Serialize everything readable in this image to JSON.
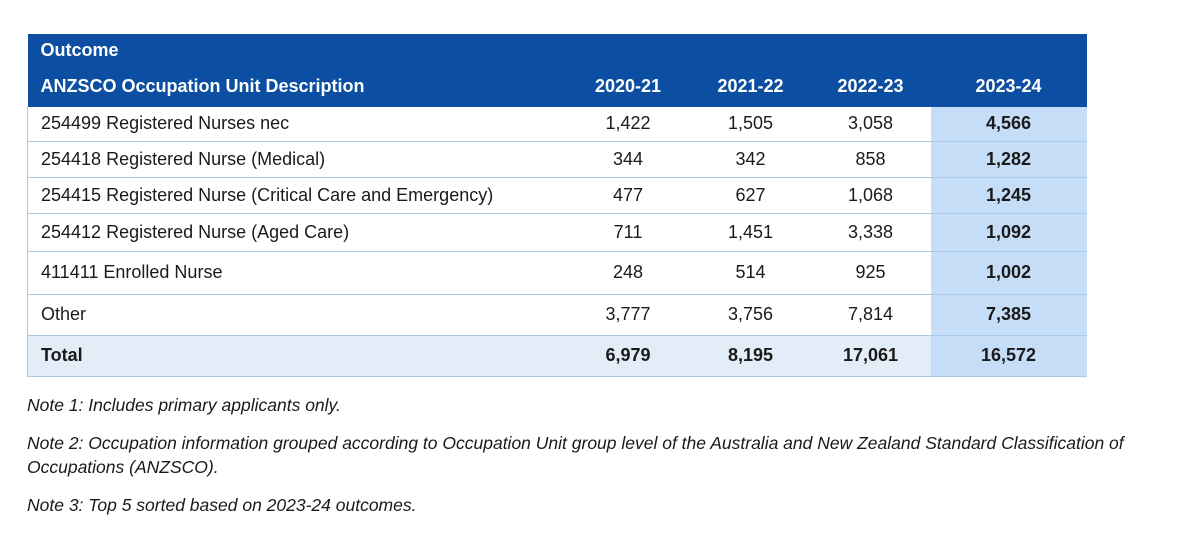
{
  "table": {
    "group_header": "Outcome",
    "columns": [
      "ANZSCO Occupation Unit Description",
      "2020-21",
      "2021-22",
      "2022-23",
      "2023-24"
    ],
    "rows": [
      [
        "254499 Registered Nurses nec",
        "1,422",
        "1,505",
        "3,058",
        "4,566"
      ],
      [
        "254418 Registered Nurse (Medical)",
        "344",
        "342",
        "858",
        "1,282"
      ],
      [
        "254415 Registered Nurse (Critical Care and Emergency)",
        "477",
        "627",
        "1,068",
        "1,245"
      ],
      [
        "254412 Registered Nurse (Aged Care)",
        "711",
        "1,451",
        "3,338",
        "1,092"
      ],
      [
        "411411 Enrolled Nurse",
        "248",
        "514",
        "925",
        "1,002"
      ],
      [
        "Other",
        "3,777",
        "3,756",
        "7,814",
        "7,385"
      ]
    ],
    "total": [
      "Total",
      "6,979",
      "8,195",
      "17,061",
      "16,572"
    ]
  },
  "notes": [
    "Note 1: Includes primary applicants only.",
    "Note 2: Occupation information grouped according to Occupation Unit group level of the Australia and New Zealand Standard Classification of Occupations (ANZSCO).",
    "Note 3: Top 5 sorted based on 2023-24 outcomes."
  ]
}
